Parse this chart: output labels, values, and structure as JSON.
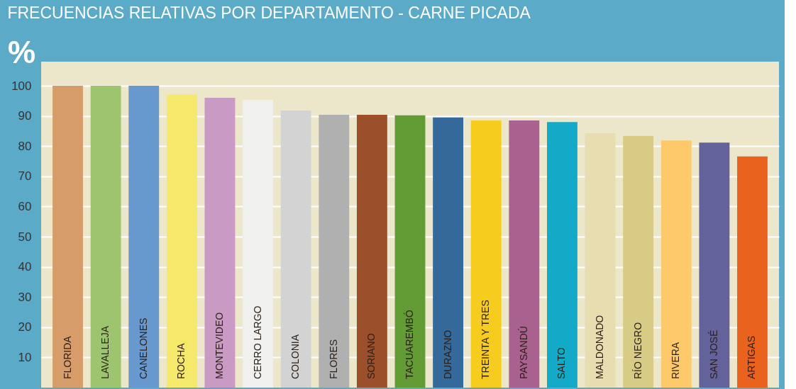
{
  "chart_data": {
    "type": "bar",
    "title": "FRECUENCIAS RELATIVAS POR DEPARTAMENTO - CARNE PICADA",
    "ylabel": "%",
    "categories": [
      "FLORIDA",
      "LAVALLEJA",
      "CANELONES",
      "ROCHA",
      "MONTEVIDEO",
      "CERRO LARGO",
      "COLONIA",
      "FLORES",
      "SORIANO",
      "TACUAREMBÓ",
      "DURAZNO",
      "TREINTA Y TRES",
      "PAYSANDÚ",
      "SALTO",
      "MALDONADO",
      "RÍO NEGRO",
      "RIVERA",
      "SAN JOSÉ",
      "ARTIGAS"
    ],
    "values": [
      100,
      100,
      100,
      97,
      96,
      95.3,
      91.8,
      90.4,
      90.4,
      90.2,
      89.5,
      88.5,
      88.5,
      88,
      84.3,
      83.4,
      81.9,
      81.2,
      76.6
    ],
    "colors": [
      "#d69c6a",
      "#9dc46f",
      "#6799cf",
      "#f6e86a",
      "#c89ac4",
      "#f0f1ee",
      "#d3d3d3",
      "#b0b0b1",
      "#9b4f2b",
      "#639b35",
      "#346999",
      "#f6cd1f",
      "#a96190",
      "#13aac7",
      "#e7ddb0",
      "#d8cb85",
      "#fdc96a",
      "#64629a",
      "#e9631f"
    ],
    "ylim": [
      0,
      108
    ],
    "yticks": [
      10,
      20,
      30,
      40,
      50,
      60,
      70,
      80,
      90,
      100
    ],
    "grid": "y"
  }
}
